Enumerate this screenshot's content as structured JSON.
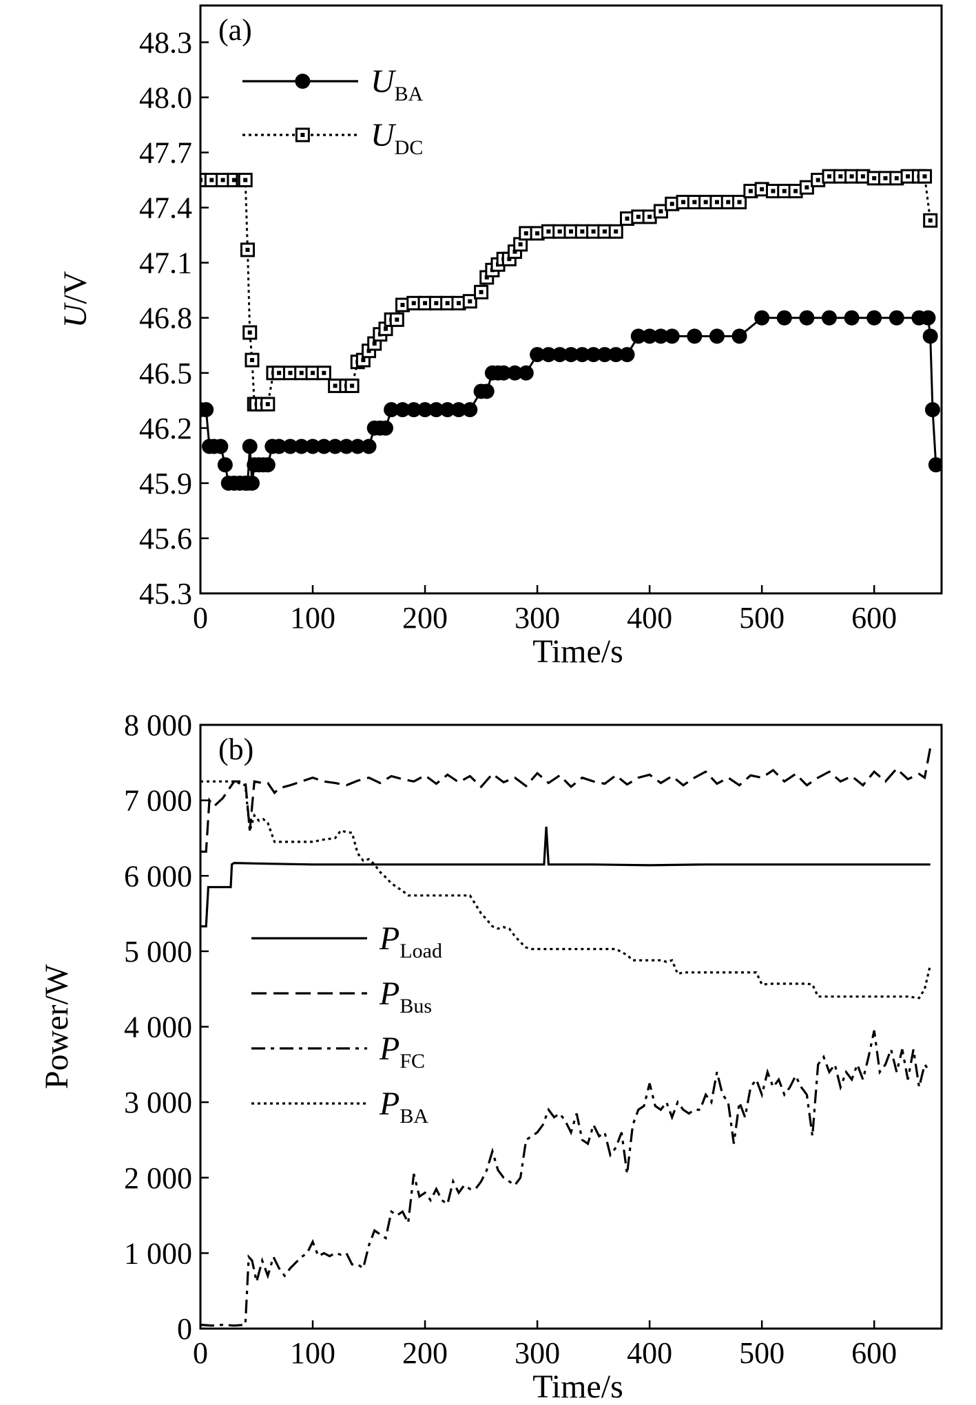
{
  "chart_data": [
    {
      "type": "line",
      "panel_label": "(a)",
      "xlabel": "Time/s",
      "ylabel_italic": "U",
      "ylabel_rest": "/V",
      "xlim": [
        0,
        660
      ],
      "ylim": [
        45.3,
        48.5
      ],
      "xticks": [
        0,
        100,
        200,
        300,
        400,
        500,
        600
      ],
      "xtick_labels": [
        "0",
        "100",
        "200",
        "300",
        "400",
        "500",
        "600"
      ],
      "yticks": [
        45.3,
        45.6,
        45.9,
        46.2,
        46.5,
        46.8,
        47.1,
        47.4,
        47.7,
        48.0,
        48.3
      ],
      "ytick_labels": [
        "45.3",
        "45.6",
        "45.9",
        "46.2",
        "46.5",
        "46.8",
        "47.1",
        "47.4",
        "47.7",
        "48.0",
        "48.3"
      ],
      "legend_position": "top-left",
      "series": [
        {
          "name": "U",
          "name_sub": "BA",
          "line_style": "solid",
          "marker": "filled-circle",
          "x": [
            0,
            5,
            8,
            12,
            18,
            22,
            25,
            30,
            35,
            40,
            42,
            44,
            46,
            48,
            52,
            56,
            60,
            64,
            70,
            80,
            90,
            100,
            110,
            120,
            130,
            140,
            150,
            155,
            160,
            165,
            170,
            180,
            190,
            200,
            210,
            220,
            230,
            240,
            250,
            255,
            260,
            265,
            270,
            280,
            290,
            300,
            310,
            320,
            330,
            340,
            350,
            360,
            370,
            380,
            390,
            400,
            410,
            420,
            440,
            460,
            480,
            500,
            520,
            540,
            560,
            580,
            600,
            620,
            640,
            648,
            650,
            652,
            655
          ],
          "y": [
            46.3,
            46.3,
            46.1,
            46.1,
            46.1,
            46.0,
            45.9,
            45.9,
            45.9,
            45.9,
            45.9,
            46.1,
            45.9,
            46.0,
            46.0,
            46.0,
            46.0,
            46.1,
            46.1,
            46.1,
            46.1,
            46.1,
            46.1,
            46.1,
            46.1,
            46.1,
            46.1,
            46.2,
            46.2,
            46.2,
            46.3,
            46.3,
            46.3,
            46.3,
            46.3,
            46.3,
            46.3,
            46.3,
            46.4,
            46.4,
            46.5,
            46.5,
            46.5,
            46.5,
            46.5,
            46.6,
            46.6,
            46.6,
            46.6,
            46.6,
            46.6,
            46.6,
            46.6,
            46.6,
            46.7,
            46.7,
            46.7,
            46.7,
            46.7,
            46.7,
            46.7,
            46.8,
            46.8,
            46.8,
            46.8,
            46.8,
            46.8,
            46.8,
            46.8,
            46.8,
            46.7,
            46.3,
            46.0
          ]
        },
        {
          "name": "U",
          "name_sub": "DC",
          "line_style": "dotted",
          "marker": "hollow-square",
          "x": [
            0,
            10,
            20,
            30,
            38,
            40,
            42,
            44,
            46,
            48,
            50,
            55,
            60,
            65,
            70,
            80,
            90,
            100,
            110,
            120,
            130,
            135,
            140,
            145,
            150,
            155,
            160,
            165,
            170,
            175,
            180,
            190,
            200,
            210,
            220,
            230,
            240,
            250,
            255,
            260,
            265,
            270,
            275,
            280,
            285,
            290,
            300,
            310,
            320,
            330,
            340,
            350,
            360,
            370,
            380,
            390,
            400,
            410,
            420,
            430,
            440,
            450,
            460,
            470,
            480,
            490,
            500,
            510,
            520,
            530,
            540,
            550,
            560,
            570,
            580,
            590,
            600,
            610,
            620,
            630,
            640,
            645,
            650
          ],
          "y": [
            47.55,
            47.55,
            47.55,
            47.55,
            47.55,
            47.55,
            47.17,
            46.72,
            46.57,
            46.33,
            46.33,
            46.33,
            46.33,
            46.5,
            46.5,
            46.5,
            46.5,
            46.5,
            46.5,
            46.43,
            46.43,
            46.43,
            46.56,
            46.57,
            46.62,
            46.66,
            46.71,
            46.74,
            46.79,
            46.79,
            46.87,
            46.88,
            46.88,
            46.88,
            46.88,
            46.88,
            46.89,
            46.94,
            47.02,
            47.06,
            47.09,
            47.12,
            47.12,
            47.16,
            47.2,
            47.26,
            47.26,
            47.27,
            47.27,
            47.27,
            47.27,
            47.27,
            47.27,
            47.27,
            47.34,
            47.35,
            47.35,
            47.38,
            47.42,
            47.43,
            47.43,
            47.43,
            47.43,
            47.43,
            47.43,
            47.49,
            47.5,
            47.49,
            47.49,
            47.49,
            47.51,
            47.55,
            47.57,
            47.57,
            47.57,
            47.57,
            47.56,
            47.56,
            47.56,
            47.57,
            47.57,
            47.57,
            47.33
          ]
        }
      ]
    },
    {
      "type": "line",
      "panel_label": "(b)",
      "xlabel": "Time/s",
      "ylabel": "Power/W",
      "xlim": [
        0,
        660
      ],
      "ylim": [
        0,
        8000
      ],
      "xticks": [
        0,
        100,
        200,
        300,
        400,
        500,
        600
      ],
      "xtick_labels": [
        "0",
        "100",
        "200",
        "300",
        "400",
        "500",
        "600"
      ],
      "yticks": [
        0,
        1000,
        2000,
        3000,
        4000,
        5000,
        6000,
        7000,
        8000
      ],
      "ytick_labels": [
        "0",
        "1 000",
        "2 000",
        "3 000",
        "4 000",
        "5 000",
        "6 000",
        "7 000",
        "8 000"
      ],
      "legend_position": "center-left",
      "series": [
        {
          "name": "P",
          "name_sub": "Load",
          "line_style": "solid",
          "x": [
            0,
            5,
            7,
            10,
            20,
            27,
            28,
            30,
            60,
            100,
            150,
            200,
            250,
            300,
            306,
            308,
            310,
            312,
            320,
            350,
            400,
            450,
            500,
            550,
            600,
            650
          ],
          "y": [
            5330,
            5330,
            5850,
            5850,
            5850,
            5850,
            6150,
            6170,
            6160,
            6150,
            6150,
            6150,
            6150,
            6150,
            6150,
            6650,
            6150,
            6150,
            6150,
            6150,
            6140,
            6150,
            6150,
            6150,
            6150,
            6150
          ]
        },
        {
          "name": "P",
          "name_sub": "Bus",
          "line_style": "dashed",
          "x": [
            0,
            5,
            8,
            12,
            20,
            30,
            40,
            44,
            48,
            55,
            60,
            66,
            70,
            80,
            90,
            100,
            110,
            120,
            130,
            140,
            150,
            160,
            170,
            180,
            190,
            200,
            210,
            220,
            230,
            240,
            250,
            260,
            270,
            280,
            290,
            300,
            310,
            320,
            330,
            340,
            350,
            360,
            370,
            380,
            390,
            400,
            410,
            420,
            430,
            440,
            450,
            460,
            470,
            480,
            490,
            500,
            510,
            520,
            530,
            540,
            550,
            560,
            570,
            580,
            590,
            600,
            610,
            620,
            630,
            640,
            645,
            650
          ],
          "y": [
            6320,
            6320,
            7000,
            6920,
            7030,
            7250,
            7250,
            6600,
            7250,
            7230,
            7230,
            7100,
            7160,
            7200,
            7250,
            7300,
            7250,
            7230,
            7200,
            7260,
            7300,
            7230,
            7320,
            7280,
            7250,
            7330,
            7220,
            7340,
            7240,
            7320,
            7180,
            7350,
            7240,
            7300,
            7190,
            7360,
            7230,
            7330,
            7180,
            7300,
            7250,
            7220,
            7330,
            7210,
            7300,
            7340,
            7230,
            7320,
            7200,
            7300,
            7380,
            7220,
            7300,
            7200,
            7330,
            7300,
            7400,
            7250,
            7350,
            7200,
            7300,
            7380,
            7250,
            7320,
            7200,
            7380,
            7250,
            7420,
            7280,
            7350,
            7300,
            7700
          ]
        },
        {
          "name": "P",
          "name_sub": "FC",
          "line_style": "dashdot",
          "x": [
            0,
            10,
            20,
            30,
            40,
            43,
            46,
            50,
            55,
            60,
            65,
            70,
            75,
            80,
            90,
            95,
            100,
            105,
            110,
            115,
            120,
            125,
            130,
            135,
            140,
            145,
            150,
            155,
            160,
            165,
            170,
            175,
            180,
            185,
            190,
            195,
            200,
            205,
            210,
            215,
            220,
            225,
            230,
            235,
            240,
            245,
            250,
            255,
            260,
            265,
            270,
            275,
            280,
            285,
            290,
            295,
            300,
            305,
            310,
            315,
            320,
            325,
            330,
            335,
            340,
            345,
            350,
            355,
            360,
            365,
            370,
            375,
            380,
            385,
            390,
            395,
            400,
            405,
            410,
            415,
            420,
            425,
            430,
            435,
            440,
            445,
            450,
            455,
            460,
            465,
            470,
            475,
            480,
            485,
            490,
            495,
            500,
            505,
            510,
            515,
            520,
            525,
            530,
            535,
            540,
            545,
            550,
            555,
            560,
            565,
            570,
            575,
            580,
            585,
            590,
            595,
            600,
            605,
            610,
            615,
            620,
            625,
            630,
            635,
            640,
            645,
            650
          ],
          "y": [
            50,
            40,
            50,
            40,
            50,
            950,
            900,
            620,
            900,
            700,
            950,
            800,
            700,
            800,
            950,
            1000,
            1150,
            960,
            1000,
            960,
            1000,
            980,
            1000,
            850,
            850,
            800,
            1100,
            1300,
            1250,
            1200,
            1550,
            1500,
            1550,
            1400,
            2050,
            1750,
            1800,
            1700,
            1850,
            1700,
            1650,
            1950,
            1800,
            1900,
            1850,
            1850,
            1950,
            2100,
            2350,
            2100,
            2000,
            1950,
            1900,
            2000,
            2500,
            2550,
            2600,
            2700,
            2900,
            2800,
            2850,
            2750,
            2600,
            2850,
            2500,
            2450,
            2700,
            2550,
            2600,
            2300,
            2400,
            2600,
            2050,
            2700,
            2900,
            2950,
            3250,
            2950,
            2900,
            3000,
            2800,
            3000,
            2900,
            2850,
            2900,
            2900,
            3100,
            3000,
            3400,
            3100,
            3000,
            2450,
            3000,
            2800,
            3200,
            3300,
            3100,
            3400,
            3200,
            3300,
            3100,
            3200,
            3350,
            3200,
            3100,
            2550,
            3500,
            3600,
            3400,
            3500,
            3200,
            3400,
            3300,
            3500,
            3300,
            3600,
            3950,
            3400,
            3500,
            3700,
            3400,
            3700,
            3300,
            3700,
            3200,
            3500,
            3400
          ]
        },
        {
          "name": "P",
          "name_sub": "BA",
          "line_style": "dotted",
          "x": [
            0,
            10,
            20,
            30,
            40,
            44,
            48,
            52,
            56,
            60,
            66,
            70,
            80,
            90,
            100,
            110,
            120,
            125,
            130,
            135,
            140,
            145,
            150,
            155,
            160,
            165,
            170,
            175,
            180,
            185,
            190,
            200,
            210,
            220,
            230,
            240,
            250,
            255,
            260,
            265,
            270,
            275,
            280,
            285,
            290,
            295,
            300,
            310,
            320,
            330,
            340,
            350,
            360,
            370,
            380,
            385,
            390,
            400,
            410,
            415,
            420,
            425,
            430,
            440,
            450,
            460,
            470,
            480,
            490,
            495,
            500,
            510,
            520,
            530,
            540,
            545,
            550,
            560,
            570,
            580,
            590,
            600,
            610,
            620,
            630,
            640,
            645,
            650
          ],
          "y": [
            7250,
            7250,
            7250,
            7250,
            7200,
            6600,
            6800,
            6730,
            6750,
            6700,
            6450,
            6450,
            6450,
            6450,
            6450,
            6480,
            6500,
            6600,
            6580,
            6570,
            6300,
            6200,
            6220,
            6150,
            6050,
            5980,
            5900,
            5850,
            5800,
            5740,
            5740,
            5740,
            5740,
            5740,
            5740,
            5740,
            5500,
            5420,
            5330,
            5300,
            5320,
            5300,
            5200,
            5120,
            5050,
            5030,
            5030,
            5030,
            5030,
            5030,
            5030,
            5030,
            5030,
            5030,
            4950,
            4880,
            4880,
            4880,
            4880,
            4860,
            4880,
            4700,
            4720,
            4720,
            4720,
            4720,
            4720,
            4720,
            4720,
            4720,
            4560,
            4570,
            4570,
            4570,
            4570,
            4560,
            4400,
            4400,
            4400,
            4400,
            4400,
            4400,
            4400,
            4400,
            4400,
            4380,
            4500,
            4820
          ]
        }
      ]
    }
  ]
}
